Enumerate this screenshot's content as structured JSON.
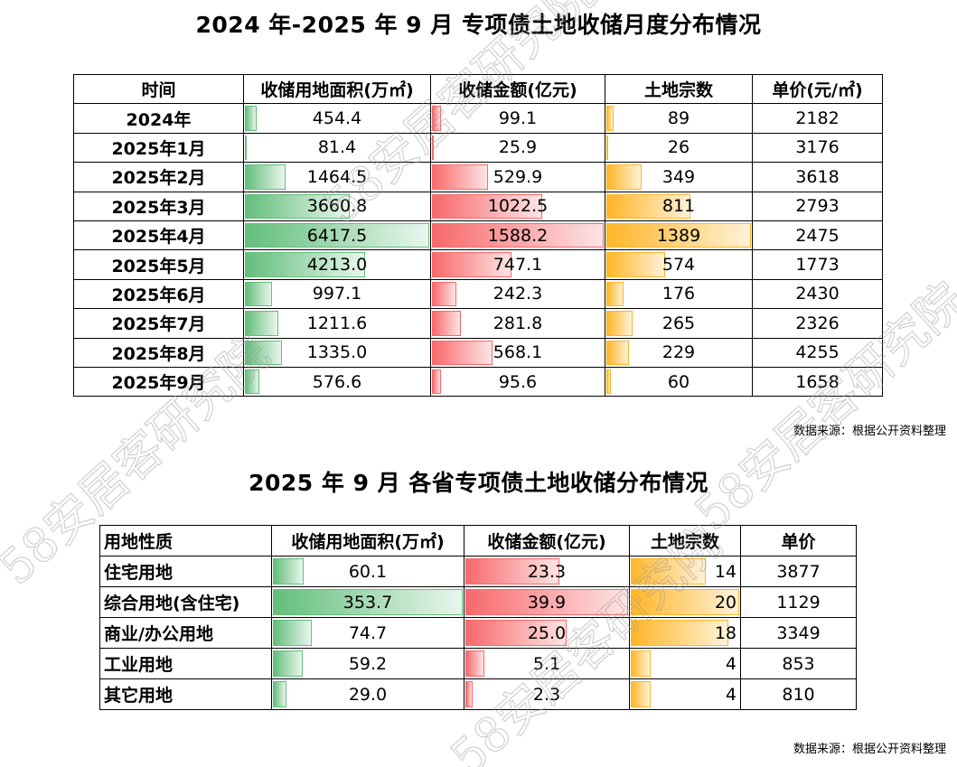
{
  "title1": "2024 年-2025 年 9 月  专项债土地收储月度分布情况",
  "title2": "2025 年 9 月  各省专项债土地收储分布情况",
  "source1": "数据来源：根据公开资料整理",
  "source2": "数据来源：根据公开资料整理",
  "watermark": "58安居客研究院",
  "colors": {
    "area": "#63be7b",
    "amount": "#f8696b",
    "count": "#ffb628"
  },
  "chart_data": [
    {
      "type": "table",
      "title": "2024 年-2025 年 9 月  专项债土地收储月度分布情况",
      "columns": [
        "时间",
        "收储用地面积(万㎡)",
        "收储金额(亿元)",
        "土地宗数",
        "单价(元/㎡)"
      ],
      "rows": [
        [
          "2024年",
          "454.4",
          "99.1",
          "89",
          "2182"
        ],
        [
          "2025年1月",
          "81.4",
          "25.9",
          "26",
          "3176"
        ],
        [
          "2025年2月",
          "1464.5",
          "529.9",
          "349",
          "3618"
        ],
        [
          "2025年3月",
          "3660.8",
          "1022.5",
          "811",
          "2793"
        ],
        [
          "2025年4月",
          "6417.5",
          "1588.2",
          "1389",
          "2475"
        ],
        [
          "2025年5月",
          "4213.0",
          "747.1",
          "574",
          "1773"
        ],
        [
          "2025年6月",
          "997.1",
          "242.3",
          "176",
          "2430"
        ],
        [
          "2025年7月",
          "1211.6",
          "281.8",
          "265",
          "2326"
        ],
        [
          "2025年8月",
          "1335.0",
          "568.1",
          "229",
          "4255"
        ],
        [
          "2025年9月",
          "576.6",
          "95.6",
          "60",
          "1658"
        ]
      ]
    },
    {
      "type": "table",
      "title": "2025 年 9 月  各省专项债土地收储分布情况",
      "columns": [
        "用地性质",
        "收储用地面积(万㎡)",
        "收储金额(亿元)",
        "土地宗数",
        "单价"
      ],
      "rows": [
        [
          "住宅用地",
          "60.1",
          "23.3",
          "14",
          "3877"
        ],
        [
          "综合用地(含住宅)",
          "353.7",
          "39.9",
          "20",
          "1129"
        ],
        [
          "商业/办公用地",
          "74.7",
          "25.0",
          "18",
          "3349"
        ],
        [
          "工业用地",
          "59.2",
          "5.1",
          "4",
          "853"
        ],
        [
          "其它用地",
          "29.0",
          "2.3",
          "4",
          "810"
        ]
      ]
    }
  ]
}
